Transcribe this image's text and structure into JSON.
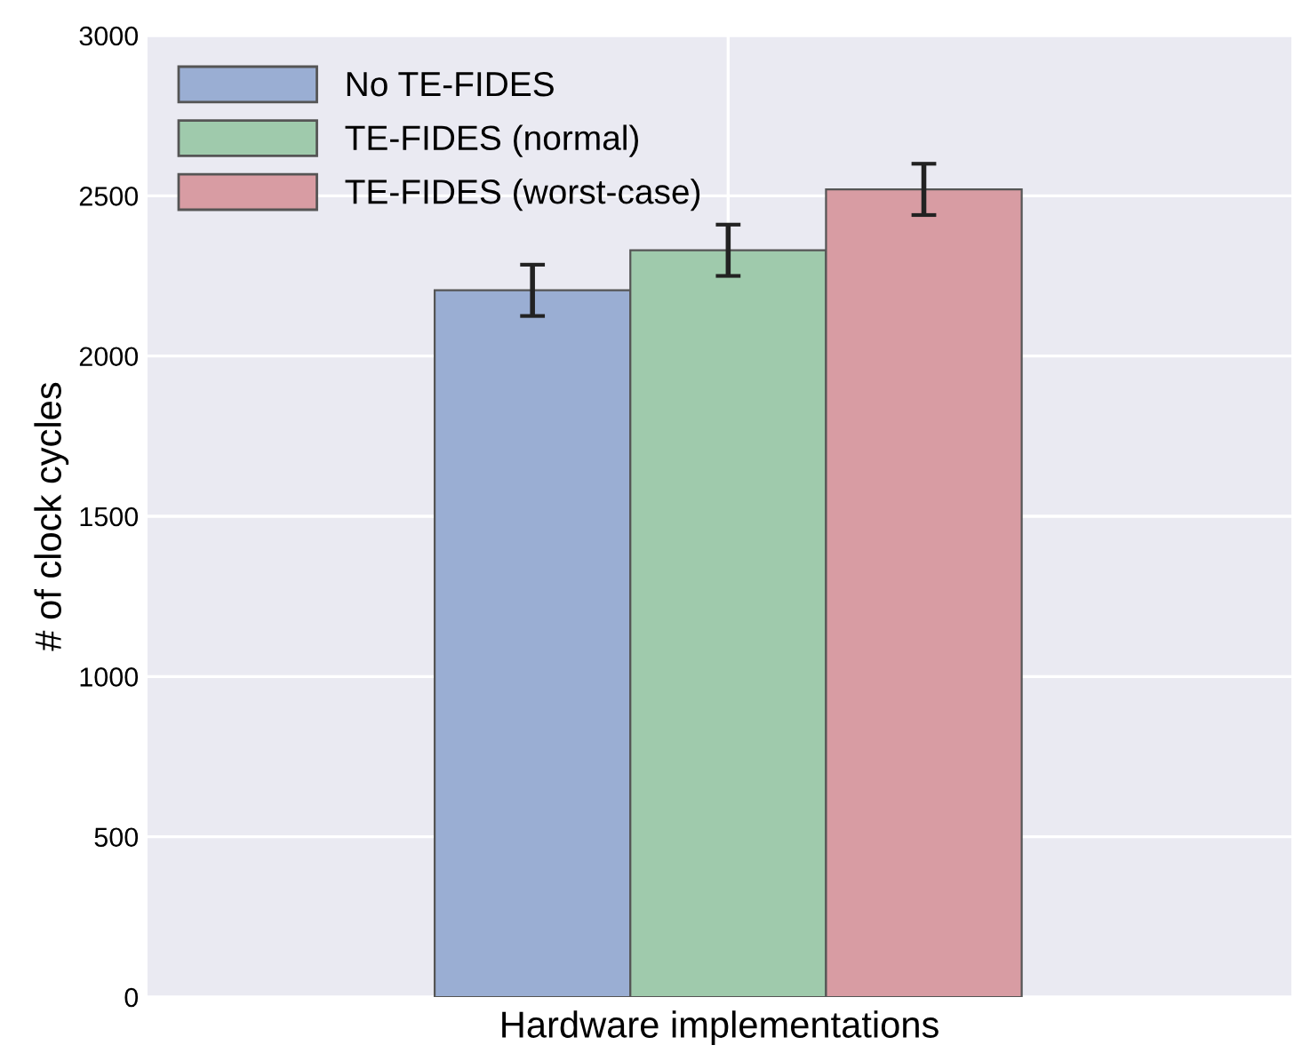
{
  "chart_data": {
    "type": "bar",
    "xlabel": "Hardware implementations",
    "ylabel": "# of clock cycles",
    "categories": [
      null
    ],
    "series": [
      {
        "name": "No TE-FIDES",
        "color": "#9aaed3",
        "values": [
          2205
        ],
        "errors": [
          80
        ]
      },
      {
        "name": "TE-FIDES (normal)",
        "color": "#9fcaac",
        "values": [
          2330
        ],
        "errors": [
          80
        ]
      },
      {
        "name": "TE-FIDES (worst-case)",
        "color": "#d89ca3",
        "values": [
          2520
        ],
        "errors": [
          80
        ]
      }
    ],
    "ylim": [
      0,
      3000
    ],
    "yticks": [
      0,
      500,
      1000,
      1500,
      2000,
      2500,
      3000
    ],
    "grid": true,
    "legend": "top left"
  }
}
